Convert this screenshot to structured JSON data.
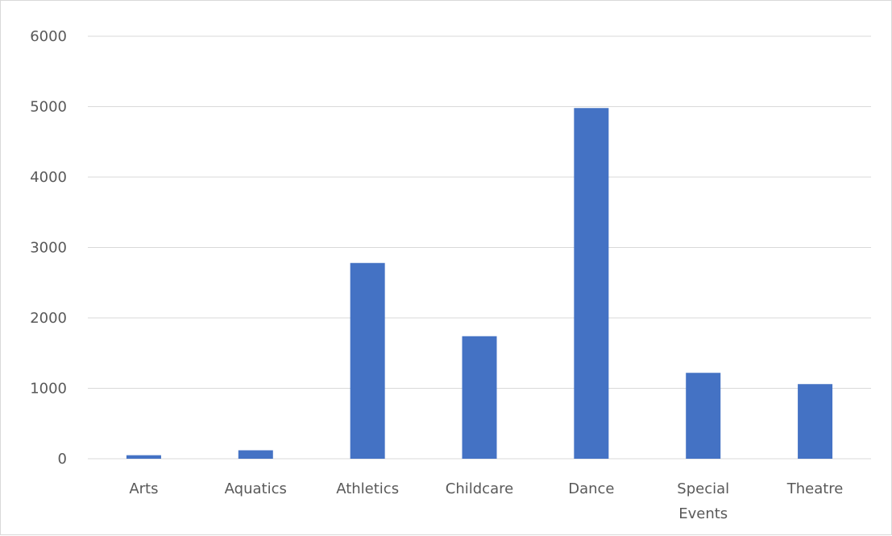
{
  "chart_data": {
    "type": "bar",
    "title": "",
    "xlabel": "",
    "ylabel": "",
    "categories": [
      "Arts",
      "Aquatics",
      "Athletics",
      "Childcare",
      "Dance",
      "Special Events",
      "Theatre"
    ],
    "values": [
      50,
      120,
      2780,
      1740,
      4980,
      1220,
      1060
    ],
    "ylim": [
      0,
      6000
    ],
    "yticks": [
      0,
      1000,
      2000,
      3000,
      4000,
      5000,
      6000
    ],
    "grid": true,
    "legend": "none",
    "colors": {
      "bar": "#4472C4",
      "grid": "#d9d9d9",
      "text": "#595959",
      "border": "#d9d9d9"
    }
  }
}
